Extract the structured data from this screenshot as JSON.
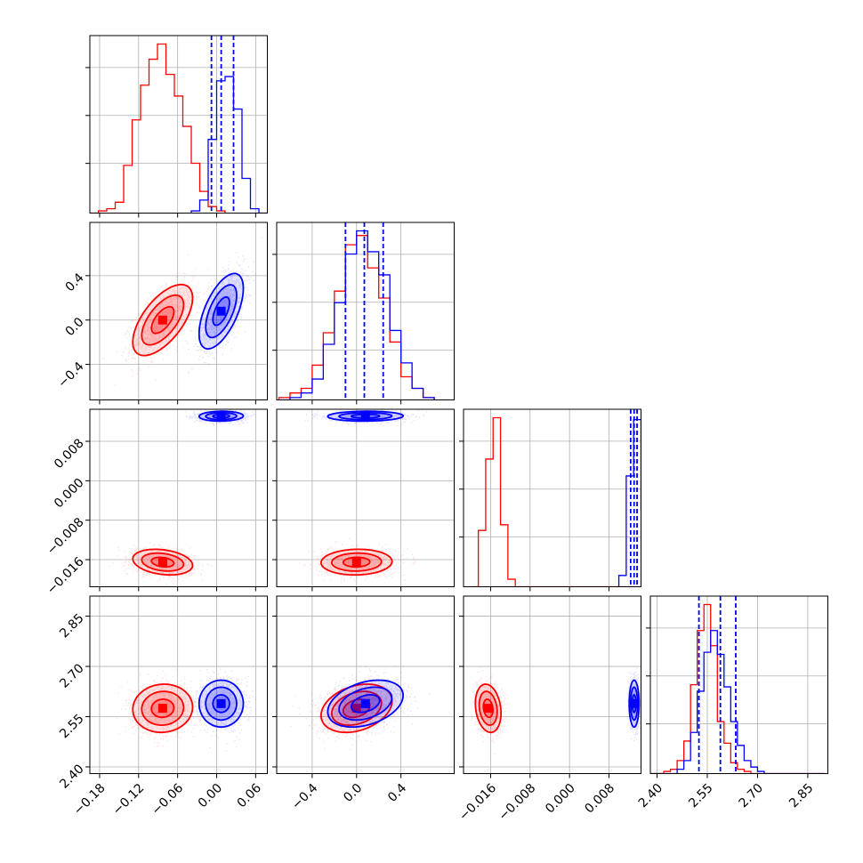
{
  "chart_data": {
    "type": "corner",
    "parameters": 4,
    "grid": true,
    "series": [
      {
        "color": "#ff0000",
        "mean": [
          -0.083,
          0.0,
          -0.0165,
          2.575
        ],
        "std": [
          0.023,
          0.16,
          0.0013,
          0.036
        ],
        "corr": [
          [
            1,
            0.62,
            -0.25,
            0.05
          ],
          [
            0.62,
            1,
            0.05,
            0.3
          ],
          [
            -0.25,
            0.05,
            1,
            -0.2
          ],
          [
            0.05,
            0.3,
            -0.2,
            1
          ]
        ],
        "hist": [
          {
            "edges": [
              -0.195,
              -0.182,
              -0.169,
              -0.156,
              -0.143,
              -0.13,
              -0.117,
              -0.104,
              -0.091,
              -0.078,
              -0.065,
              -0.052,
              -0.039,
              -0.026,
              -0.013,
              0.0,
              0.013
            ],
            "counts": [
              0,
              0.01,
              0.02,
              0.05,
              0.22,
              0.43,
              0.59,
              0.71,
              0.78,
              0.64,
              0.54,
              0.4,
              0.23,
              0.1,
              0.03,
              0.01
            ]
          },
          {
            "edges": [
              -0.7,
              -0.6,
              -0.5,
              -0.4,
              -0.3,
              -0.2,
              -0.1,
              0.0,
              0.1,
              0.2,
              0.3,
              0.4,
              0.5,
              0.6,
              0.7
            ],
            "counts": [
              0.01,
              0.03,
              0.05,
              0.15,
              0.29,
              0.47,
              0.67,
              0.71,
              0.57,
              0.44,
              0.25,
              0.1,
              0.05,
              0.01
            ]
          },
          {
            "edges": [
              -0.02,
              -0.0185,
              -0.017,
              -0.0155,
              -0.014,
              -0.0125,
              -0.011,
              -0.0095,
              -0.008,
              -0.0065,
              -0.005,
              -0.0035,
              -0.002,
              -0.0005,
              0.001,
              0.0025,
              0.004,
              0.0055,
              0.007,
              0.0085,
              0.01,
              0.0115,
              0.013
            ],
            "counts": [
              0,
              0.3,
              0.68,
              0.9,
              0.33,
              0.04,
              0,
              0,
              0,
              0,
              0,
              0,
              0,
              0,
              0,
              0,
              0,
              0,
              0,
              0,
              0,
              0
            ]
          },
          {
            "edges": [
              2.38,
              2.4,
              2.42,
              2.44,
              2.46,
              2.48,
              2.5,
              2.52,
              2.54,
              2.56,
              2.58,
              2.6,
              2.62,
              2.64,
              2.66,
              2.68,
              2.7,
              2.72,
              2.74,
              2.76,
              2.78,
              2.8,
              2.82,
              2.84,
              2.86,
              2.88,
              2.9
            ],
            "counts": [
              0,
              0,
              0.01,
              0.02,
              0.06,
              0.15,
              0.41,
              0.66,
              0.78,
              0.59,
              0.24,
              0.14,
              0.05,
              0.02,
              0.01,
              0,
              0,
              0,
              0,
              0,
              0,
              0,
              0,
              0,
              0,
              0
            ]
          }
        ]
      },
      {
        "color": "#0000ff",
        "mean": [
          0.007,
          0.08,
          0.0131,
          2.589
        ],
        "std": [
          0.017,
          0.17,
          0.0005,
          0.035
        ],
        "corr": [
          [
            1,
            0.6,
            0.05,
            0.0
          ],
          [
            0.6,
            1,
            0.05,
            0.35
          ],
          [
            0.05,
            0.05,
            1,
            0.0
          ],
          [
            0.0,
            0.35,
            0.0,
            1
          ]
        ],
        "quantiles": [
          [
            -0.008,
            0.007,
            0.026
          ],
          [
            -0.1,
            0.07,
            0.24
          ],
          [
            0.0124,
            0.0131,
            0.0137
          ],
          [
            2.525,
            2.589,
            2.635
          ]
        ],
        "hist": [
          {
            "edges": [
              -0.039,
              -0.026,
              -0.013,
              0.0,
              0.013,
              0.026,
              0.039,
              0.052,
              0.065,
              0.078
            ],
            "counts": [
              0.01,
              0.06,
              0.34,
              0.61,
              0.63,
              0.48,
              0.16,
              0.02,
              0
            ]
          },
          {
            "edges": [
              -0.7,
              -0.6,
              -0.5,
              -0.4,
              -0.3,
              -0.2,
              -0.1,
              0.0,
              0.1,
              0.2,
              0.3,
              0.4,
              0.5,
              0.6,
              0.7
            ],
            "counts": [
              0,
              0.01,
              0.03,
              0.09,
              0.24,
              0.42,
              0.63,
              0.73,
              0.64,
              0.54,
              0.3,
              0.16,
              0.05,
              0.01
            ]
          },
          {
            "edges": [
              0.01,
              0.0115,
              0.013,
              0.0145,
              0.016
            ],
            "counts": [
              0.06,
              0.59,
              0.89,
              0.41
            ]
          },
          {
            "edges": [
              2.38,
              2.4,
              2.42,
              2.44,
              2.46,
              2.48,
              2.5,
              2.52,
              2.54,
              2.56,
              2.58,
              2.6,
              2.62,
              2.64,
              2.66,
              2.68,
              2.7,
              2.72,
              2.74,
              2.76,
              2.78,
              2.8,
              2.82,
              2.84,
              2.86,
              2.88,
              2.9
            ],
            "counts": [
              0,
              0,
              0,
              0,
              0.02,
              0.06,
              0.19,
              0.38,
              0.56,
              0.66,
              0.55,
              0.4,
              0.24,
              0.13,
              0.06,
              0.03,
              0.01,
              0,
              0,
              0,
              0,
              0,
              0,
              0,
              0,
              0
            ]
          }
        ]
      }
    ],
    "axes": [
      {
        "range": [
          -0.195,
          0.078
        ],
        "ticks": [
          -0.18,
          -0.12,
          -0.06,
          0.0,
          0.06
        ],
        "tick_labels": [
          "−0.18",
          "−0.12",
          "−0.06",
          "0.00",
          "0.06"
        ]
      },
      {
        "range": [
          -0.72,
          0.88
        ],
        "ticks": [
          -0.4,
          0.0,
          0.4
        ],
        "tick_labels": [
          "−0.4",
          "0.0",
          "0.4"
        ]
      },
      {
        "range": [
          -0.0215,
          0.0145
        ],
        "ticks": [
          -0.016,
          -0.008,
          0.0,
          0.008
        ],
        "tick_labels": [
          "−0.016",
          "−0.008",
          "0.000",
          "0.008"
        ]
      },
      {
        "range": [
          2.38,
          2.91
        ],
        "ticks": [
          2.4,
          2.55,
          2.7,
          2.85
        ],
        "tick_labels": [
          "2.40",
          "2.55",
          "2.70",
          "2.85"
        ]
      }
    ]
  }
}
